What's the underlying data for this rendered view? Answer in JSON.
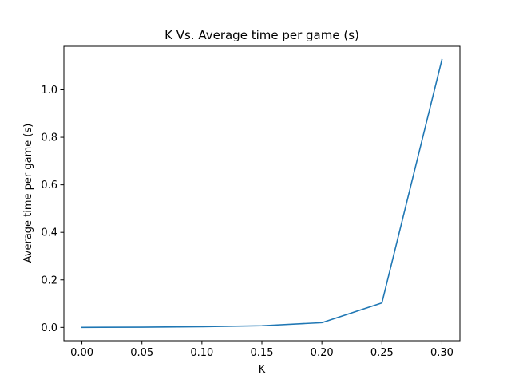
{
  "chart_data": {
    "type": "line",
    "title": "K Vs. Average time per game (s)",
    "xlabel": "K",
    "ylabel": "Average time per game (s)",
    "xlim": [
      -0.015,
      0.315
    ],
    "ylim": [
      -0.056,
      1.183
    ],
    "xticks": [
      0.0,
      0.05,
      0.1,
      0.15,
      0.2,
      0.25,
      0.3
    ],
    "xtick_labels": [
      "0.00",
      "0.05",
      "0.10",
      "0.15",
      "0.20",
      "0.25",
      "0.30"
    ],
    "yticks": [
      0.0,
      0.2,
      0.4,
      0.6,
      0.8,
      1.0
    ],
    "ytick_labels": [
      "0.0",
      "0.2",
      "0.4",
      "0.6",
      "0.8",
      "1.0"
    ],
    "grid": false,
    "series": [
      {
        "color": "#1f77b4",
        "x": [
          0.0,
          0.05,
          0.1,
          0.15,
          0.2,
          0.25,
          0.3
        ],
        "y": [
          0.0,
          0.001,
          0.003,
          0.007,
          0.02,
          0.103,
          1.127
        ]
      }
    ]
  }
}
